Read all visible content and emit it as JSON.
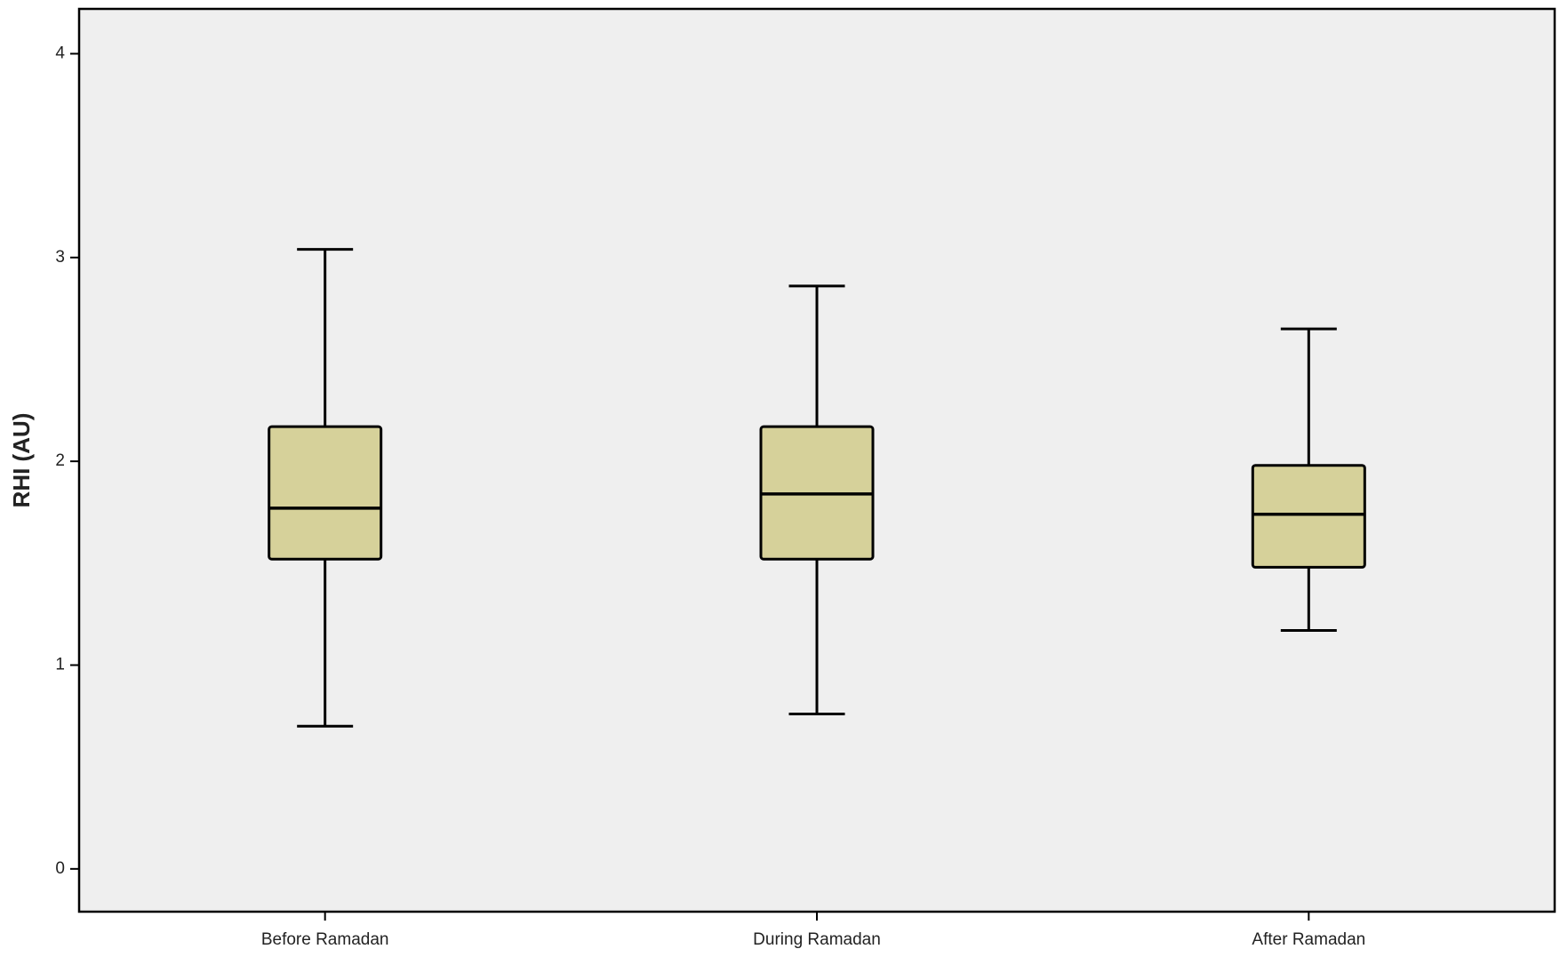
{
  "chart_data": {
    "type": "box",
    "y_label": "RHI (AU)",
    "categories": [
      "Before Ramadan",
      "During Ramadan",
      "After Ramadan"
    ],
    "min": [
      0.7,
      0.76,
      1.17
    ],
    "q1": [
      1.52,
      1.52,
      1.48
    ],
    "median": [
      1.77,
      1.84,
      1.74
    ],
    "q3": [
      2.17,
      2.17,
      1.98
    ],
    "max": [
      3.04,
      2.86,
      2.65
    ],
    "color": "#d6d19a",
    "background": "#efefef",
    "ylim": [
      -0.21,
      4.22
    ],
    "yticks": [
      0,
      1,
      2,
      3,
      4
    ]
  }
}
